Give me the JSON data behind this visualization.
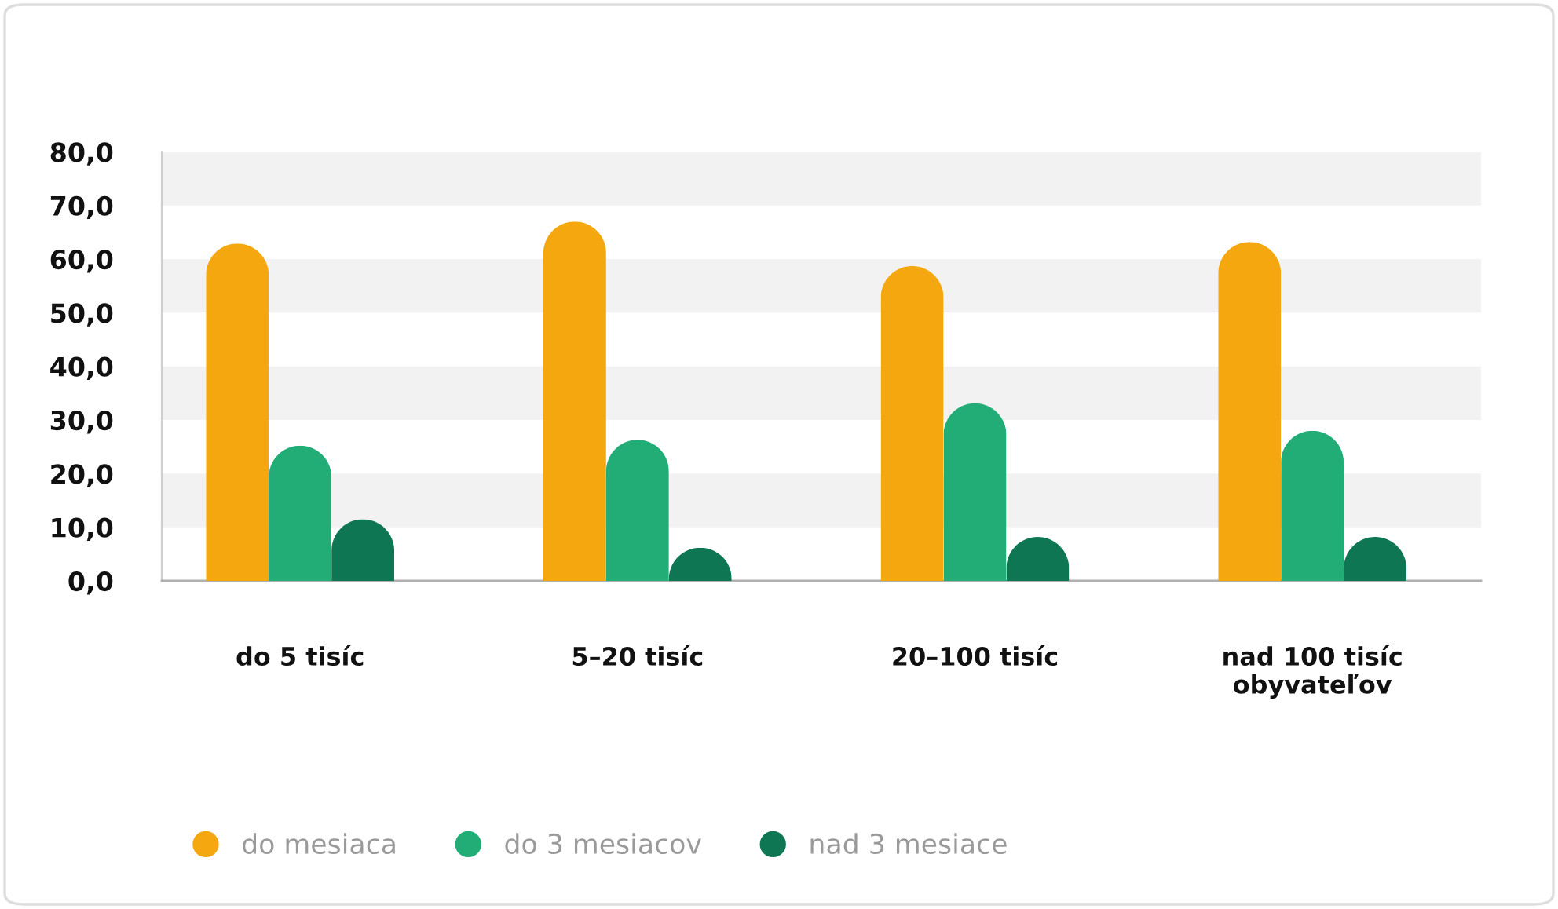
{
  "chart_data": {
    "type": "bar",
    "categories": [
      "do 5 tisíc",
      "5–20 tisíc",
      "20–100 tisíc",
      "nad 100 tisíc\nobyvateľov"
    ],
    "series": [
      {
        "name": "do mesiaca",
        "color": "#f4a70f",
        "values": [
          62.9,
          67.0,
          58.7,
          63.2
        ]
      },
      {
        "name": "do 3 mesiacov",
        "color": "#22ac76",
        "values": [
          25.2,
          26.3,
          33.1,
          28.0
        ]
      },
      {
        "name": "nad 3 mesiace",
        "color": "#0e7652",
        "values": [
          11.5,
          6.2,
          8.2,
          8.2
        ]
      }
    ],
    "ylim": [
      0,
      80
    ],
    "yticks": [
      {
        "value": 0,
        "label": "0,0"
      },
      {
        "value": 10,
        "label": "10,0"
      },
      {
        "value": 20,
        "label": "20,0"
      },
      {
        "value": 30,
        "label": "30,0"
      },
      {
        "value": 40,
        "label": "40,0"
      },
      {
        "value": 50,
        "label": "50,0"
      },
      {
        "value": 60,
        "label": "60,0"
      },
      {
        "value": 70,
        "label": "70,0"
      },
      {
        "value": 80,
        "label": "80,0"
      }
    ],
    "bands": [
      {
        "axis": "y",
        "from": 10,
        "to": 20,
        "color": "#f2f2f2"
      },
      {
        "axis": "y",
        "from": 30,
        "to": 40,
        "color": "#f2f2f2"
      },
      {
        "axis": "y",
        "from": 50,
        "to": 60,
        "color": "#f2f2f2"
      },
      {
        "axis": "y",
        "from": 70,
        "to": 80,
        "color": "#f2f2f2"
      }
    ],
    "legend": "bottom left"
  }
}
